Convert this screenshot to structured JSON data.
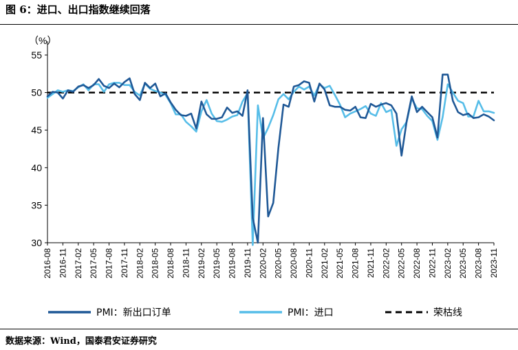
{
  "header": {
    "title": "图 6：进口、出口指数继续回落"
  },
  "footer": {
    "source": "数据来源：Wind，国泰君安证券研究"
  },
  "colors": {
    "new_export": "#1f5896",
    "import": "#56bde8",
    "threshold": "#000000"
  },
  "chart_data": {
    "type": "line",
    "ylabel": "（%）",
    "ylim": [
      30,
      55
    ],
    "yticks": [
      30,
      35,
      40,
      45,
      50,
      55
    ],
    "x_start": "2016-08",
    "x_end": "2023-11",
    "x_tick_labels": [
      "2016-08",
      "2016-11",
      "2017-02",
      "2017-05",
      "2017-08",
      "2017-11",
      "2018-02",
      "2018-05",
      "2018-08",
      "2018-11",
      "2019-02",
      "2019-05",
      "2019-08",
      "2019-11",
      "2020-02",
      "2020-05",
      "2020-08",
      "2020-11",
      "2021-02",
      "2021-05",
      "2021-08",
      "2021-11",
      "2022-02",
      "2022-05",
      "2022-08",
      "2022-11",
      "2023-02",
      "2023-05",
      "2023-08",
      "2023-11"
    ],
    "threshold": {
      "name": "荣枯线",
      "value": 50
    },
    "series": [
      {
        "name": "PMI：新出口订单",
        "values": [
          49.5,
          50.1,
          50.0,
          49.2,
          50.3,
          50.1,
          50.8,
          51.0,
          50.6,
          51.0,
          51.8,
          50.9,
          50.6,
          51.2,
          50.7,
          51.4,
          51.9,
          49.8,
          49.0,
          51.3,
          50.6,
          51.2,
          49.5,
          49.9,
          48.7,
          47.7,
          47.0,
          46.9,
          47.2,
          45.2,
          48.8,
          47.1,
          46.5,
          46.5,
          46.7,
          48.0,
          47.3,
          47.5,
          46.9,
          50.3,
          33.3,
          30.0,
          46.6,
          33.5,
          35.3,
          42.6,
          48.4,
          48.1,
          50.8,
          51.0,
          51.5,
          51.3,
          48.8,
          51.2,
          50.4,
          48.3,
          48.1,
          48.1,
          47.7,
          47.6,
          48.1,
          46.7,
          46.6,
          48.5,
          48.1,
          48.4,
          48.6,
          48.3,
          47.2,
          41.6,
          46.2,
          49.5,
          47.4,
          48.1,
          47.4,
          46.7,
          44.0,
          52.4,
          52.4,
          48.9,
          47.4,
          47.0,
          47.2,
          46.6,
          46.7,
          47.1,
          46.8,
          46.3
        ]
      },
      {
        "name": "PMI：进口",
        "values": [
          49.3,
          49.8,
          50.3,
          50.1,
          50.3,
          50.2,
          50.7,
          51.1,
          50.3,
          51.1,
          51.1,
          50.1,
          51.1,
          51.3,
          51.3,
          51.0,
          51.0,
          50.1,
          49.6,
          51.2,
          50.5,
          50.2,
          50.0,
          49.7,
          48.6,
          47.1,
          47.1,
          46.1,
          45.5,
          44.8,
          47.5,
          49.0,
          47.2,
          46.2,
          46.1,
          46.4,
          46.8,
          47.0,
          48.8,
          49.9,
          29.7,
          48.3,
          43.9,
          45.3,
          47.0,
          49.1,
          49.8,
          49.1,
          50.1,
          50.8,
          50.4,
          50.8,
          49.6,
          51.1,
          50.6,
          50.9,
          49.7,
          48.4,
          46.7,
          47.2,
          47.5,
          47.8,
          48.2,
          47.2,
          46.9,
          48.6,
          47.4,
          47.7,
          42.9,
          45.1,
          46.1,
          49.2,
          47.9,
          47.8,
          46.9,
          46.2,
          43.7,
          46.7,
          51.1,
          50.0,
          48.9,
          48.6,
          46.8,
          46.8,
          48.9,
          47.5,
          47.5,
          47.3
        ]
      }
    ],
    "legend": {
      "position": "bottom"
    }
  }
}
